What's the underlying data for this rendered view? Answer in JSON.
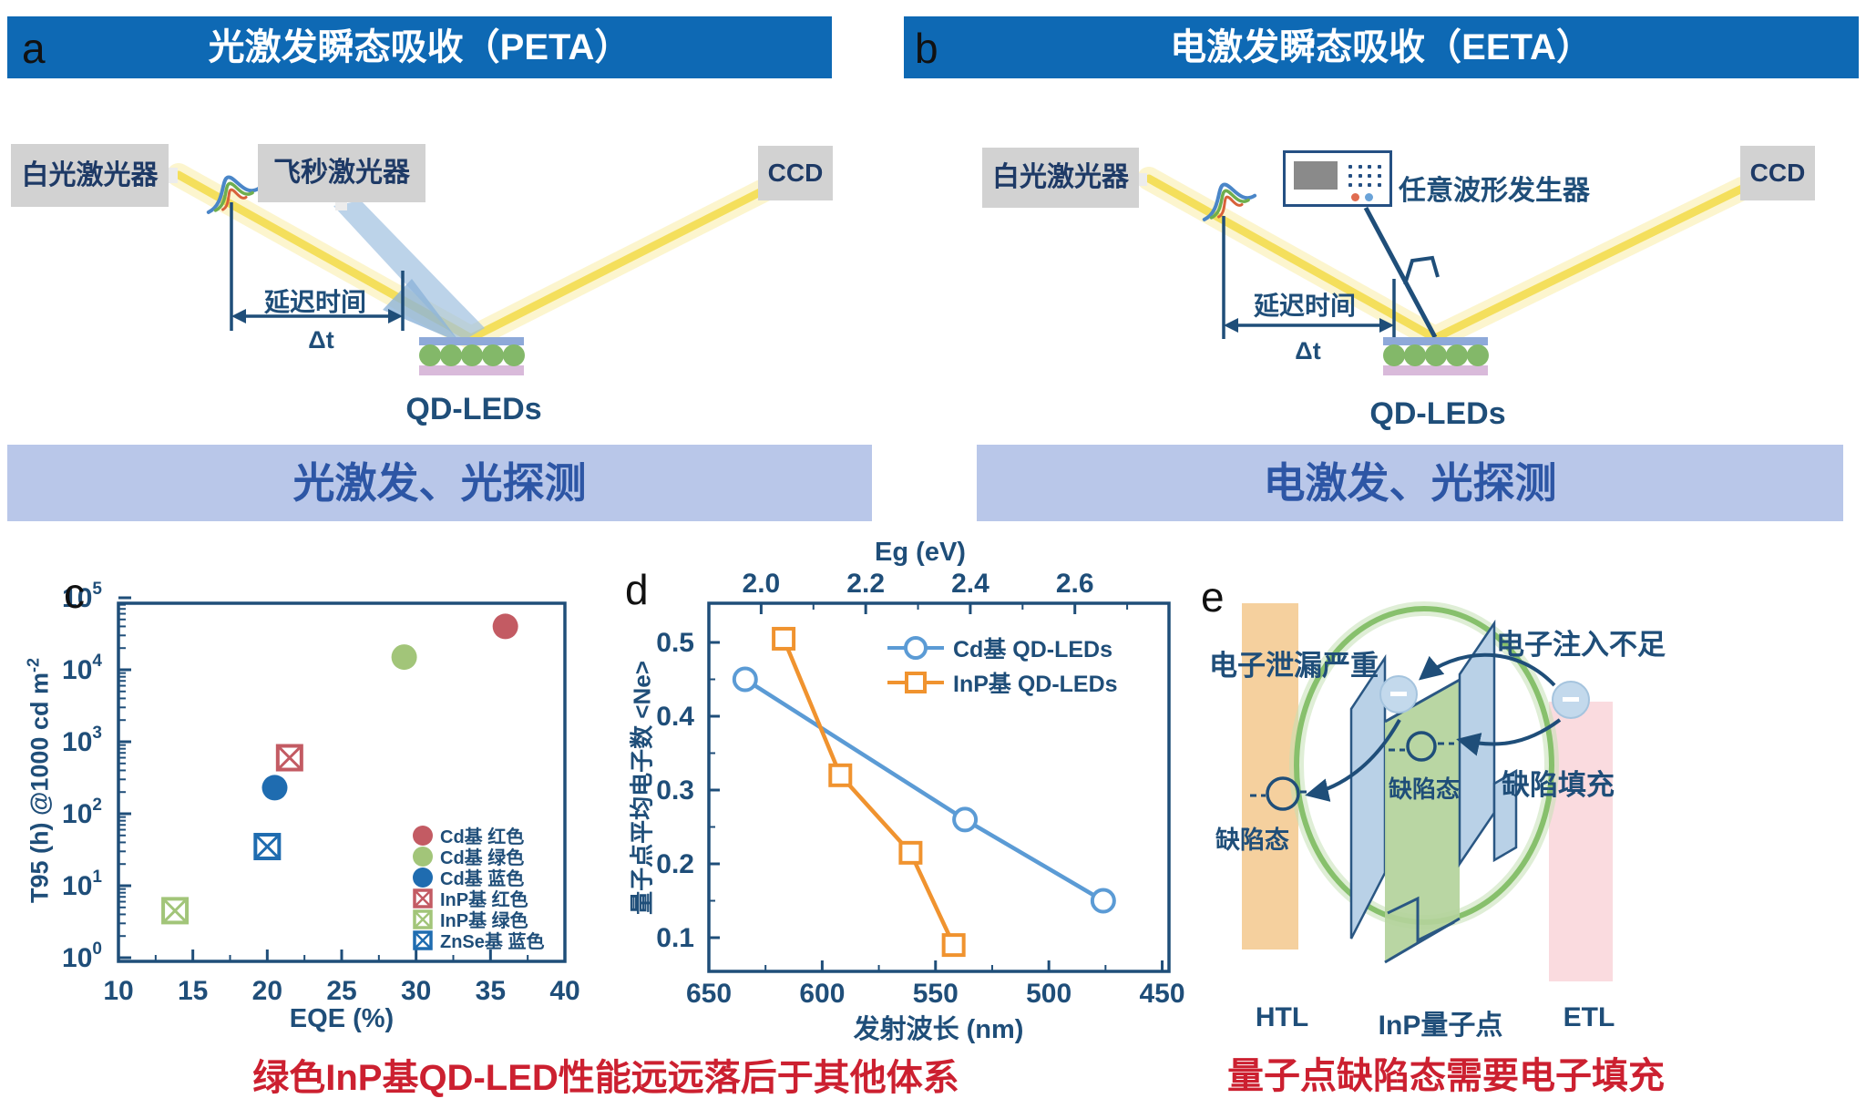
{
  "panel_a": {
    "label": "a",
    "title": "光激发瞬态吸收（PETA）",
    "white_laser": "白光激光器",
    "fs_laser": "飞秒激光器",
    "ccd": "CCD",
    "delay_label": "延迟时间",
    "delta_t": "Δt",
    "device_label": "QD-LEDs",
    "banner": "光激发、光探测"
  },
  "panel_b": {
    "label": "b",
    "title": "电激发瞬态吸收（EETA）",
    "white_laser": "白光激光器",
    "awg_label": "任意波形发生器",
    "ccd": "CCD",
    "delay_label": "延迟时间",
    "delta_t": "Δt",
    "device_label": "QD-LEDs",
    "banner": "电激发、光探测"
  },
  "panel_c": {
    "label": "c",
    "caption": "绿色InP基QD-LED性能远远落后于其他体系"
  },
  "panel_d": {
    "label": "d"
  },
  "panel_e": {
    "label": "e",
    "leak": "电子泄漏严重",
    "injection": "电子注入不足",
    "defect_left": "缺陷态",
    "defect_mid": "缺陷态",
    "fill": "缺陷填充",
    "htl": "HTL",
    "qd": "InP量子点",
    "etl": "ETL",
    "caption": "量子点缺陷态需要电子填充"
  },
  "colors": {
    "banner_blue": "#0e69b4",
    "banner_light": "#b9c7e9",
    "navy": "#1f4e79",
    "caption_red": "#cc2030"
  },
  "chart_data": [
    {
      "id": "c",
      "type": "scatter",
      "xlabel": "EQE (%)",
      "ylabel": "T95 (h) @1000 cd m",
      "ylabel_sup": "-2",
      "xlim": [
        10,
        40
      ],
      "xticks": [
        10,
        15,
        20,
        25,
        30,
        35,
        40
      ],
      "yscale": "log",
      "ylim": [
        1,
        100000
      ],
      "ytick_exponents": [
        0,
        1,
        2,
        3,
        4,
        5
      ],
      "grid": false,
      "legend_position": "lower right",
      "series": [
        {
          "name": "Cd基 红色",
          "marker": "circle",
          "color": "#c35b63",
          "points": [
            [
              36,
              40000
            ]
          ]
        },
        {
          "name": "Cd基 绿色",
          "marker": "circle",
          "color": "#a2c579",
          "points": [
            [
              29.2,
              15000
            ]
          ]
        },
        {
          "name": "Cd基 蓝色",
          "marker": "circle",
          "color": "#1f6cb0",
          "points": [
            [
              20.5,
              230
            ]
          ]
        },
        {
          "name": "InP基 红色",
          "marker": "crossed-square",
          "color": "#c35b63",
          "points": [
            [
              21.5,
              600
            ]
          ]
        },
        {
          "name": "InP基 绿色",
          "marker": "crossed-square",
          "color": "#a2c579",
          "points": [
            [
              13.8,
              4.5
            ]
          ]
        },
        {
          "name": "ZnSe基 蓝色",
          "marker": "crossed-square",
          "color": "#1f6cb0",
          "points": [
            [
              20,
              35
            ]
          ]
        }
      ]
    },
    {
      "id": "d",
      "type": "line",
      "xlabel": "发射波长 (nm)",
      "xlabel_top": "Eg (eV)",
      "ylabel": "量子点平均电子数 <Ne>",
      "xlim": [
        650,
        447
      ],
      "xticks": [
        650,
        600,
        550,
        500,
        450
      ],
      "top_ticks": [
        2.0,
        2.2,
        2.4,
        2.6
      ],
      "top_lim": [
        1.9,
        2.78
      ],
      "ylim": [
        0.054,
        0.553
      ],
      "yticks": [
        0.1,
        0.2,
        0.3,
        0.4,
        0.5
      ],
      "grid": false,
      "legend_position": "upper right",
      "series": [
        {
          "name": "Cd基 QD-LEDs",
          "marker": "circle",
          "color": "#5b9bd5",
          "x": [
            634,
            537,
            476
          ],
          "y": [
            0.45,
            0.26,
            0.15
          ]
        },
        {
          "name": "InP基 QD-LEDs",
          "marker": "square",
          "color": "#f0932f",
          "x": [
            617,
            592,
            561,
            542
          ],
          "y": [
            0.505,
            0.32,
            0.215,
            0.09
          ]
        }
      ]
    }
  ]
}
